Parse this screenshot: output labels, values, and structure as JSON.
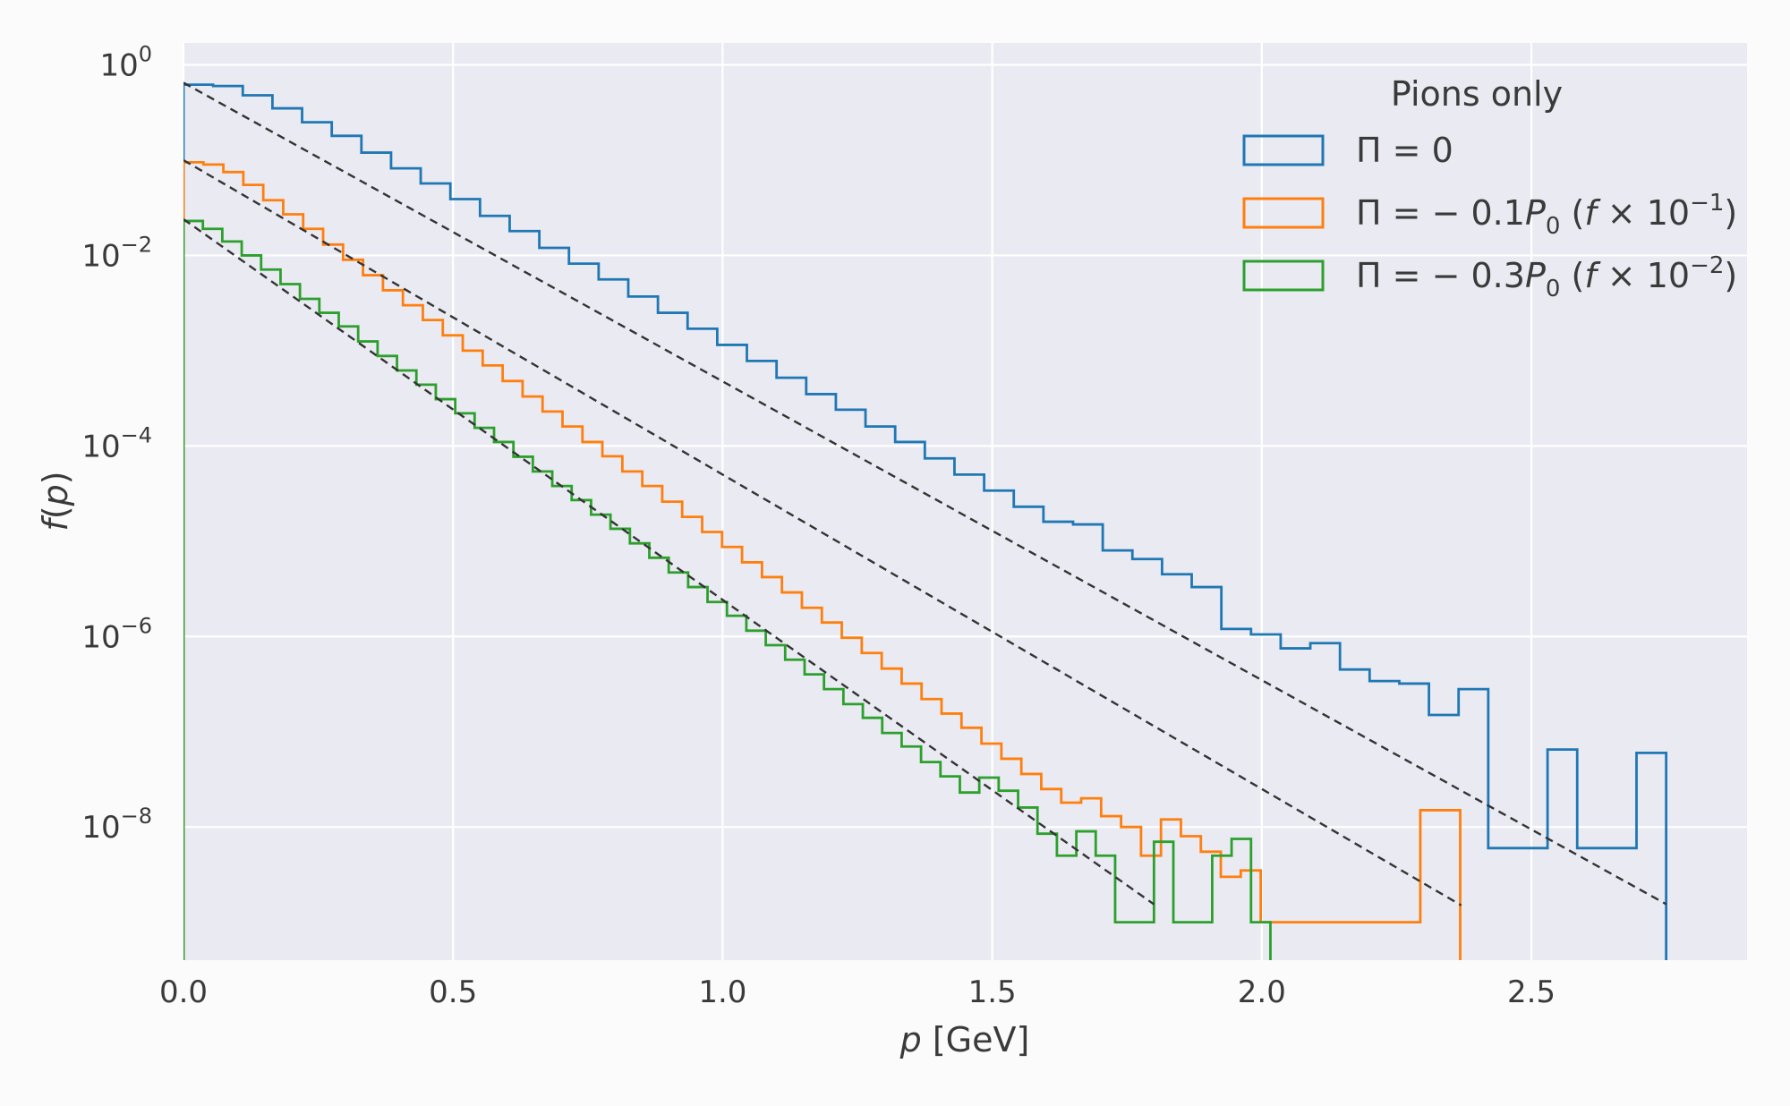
{
  "chart_data": {
    "type": "line",
    "plot_style": "step histogram with dashed fit lines",
    "y_scale": "log",
    "grid": true,
    "legend_placement": "top-right",
    "xlabel": {
      "italic": "p",
      "rest": " [GeV]"
    },
    "ylabel": {
      "italic": "f",
      "rest": "(",
      "italic2": "p",
      "close": ")"
    },
    "xlim": [
      0.0,
      2.9
    ],
    "ylim": [
      4e-10,
      1.7
    ],
    "x_ticks": [
      0.0,
      0.5,
      1.0,
      1.5,
      2.0,
      2.5
    ],
    "x_tick_labels": [
      "0.0",
      "0.5",
      "1.0",
      "1.5",
      "2.0",
      "2.5"
    ],
    "y_ticks": [
      1,
      0.01,
      0.0001,
      1e-06,
      1e-08
    ],
    "y_tick_labels": [
      {
        "base": "10",
        "exp": "0"
      },
      {
        "base": "10",
        "exp": "−2"
      },
      {
        "base": "10",
        "exp": "−4"
      },
      {
        "base": "10",
        "exp": "−6"
      },
      {
        "base": "10",
        "exp": "−8"
      }
    ],
    "legend_title": "Pions only",
    "series": [
      {
        "name": "Π = 0",
        "legend_parts": [
          {
            "t": "Π = 0"
          }
        ],
        "color": "#1f77b4",
        "bin_width": 0.055,
        "values": [
          0.62,
          0.6,
          0.48,
          0.35,
          0.25,
          0.18,
          0.12,
          0.082,
          0.057,
          0.039,
          0.026,
          0.018,
          0.012,
          0.0082,
          0.0056,
          0.0037,
          0.0025,
          0.0017,
          0.00115,
          0.00078,
          0.00052,
          0.00035,
          0.00024,
          0.00016,
          0.00011,
          7.4e-05,
          5e-05,
          3.4e-05,
          2.3e-05,
          1.6e-05,
          1.5e-05,
          8e-06,
          6.5e-06,
          4.5e-06,
          3.3e-06,
          1.2e-06,
          1.05e-06,
          7.5e-07,
          8.5e-07,
          4.5e-07,
          3.4e-07,
          3.2e-07,
          1.5e-07,
          2.8e-07,
          6e-09,
          6e-09,
          6.5e-08,
          6e-09,
          6e-09,
          6e-08
        ],
        "fit": {
          "a": 0.65,
          "b": 7.22,
          "x_end": 2.75
        }
      },
      {
        "name": "Π = − 0.1P0 (f × 10−1)",
        "legend_parts": [
          {
            "t": "Π = − 0.1"
          },
          {
            "t": "P",
            "it": true
          },
          {
            "t": "0",
            "sub": true
          },
          {
            "t": " ("
          },
          {
            "t": "f",
            "it": true
          },
          {
            "t": " × 10"
          },
          {
            "t": "−1",
            "sup": true
          },
          {
            "t": ")"
          }
        ],
        "color": "#ff7f0e",
        "bin_width": 0.037,
        "values": [
          0.095,
          0.09,
          0.075,
          0.055,
          0.038,
          0.027,
          0.019,
          0.013,
          0.009,
          0.0062,
          0.0043,
          0.003,
          0.0021,
          0.00145,
          0.001,
          0.0007,
          0.00048,
          0.00033,
          0.00023,
          0.00016,
          0.00011,
          7.8e-05,
          5.4e-05,
          3.8e-05,
          2.6e-05,
          1.8e-05,
          1.25e-05,
          8.7e-06,
          6e-06,
          4.2e-06,
          2.9e-06,
          2e-06,
          1.4e-06,
          9.7e-07,
          6.7e-07,
          4.6e-07,
          3.2e-07,
          2.2e-07,
          1.55e-07,
          1.1e-07,
          7.5e-08,
          5.2e-08,
          3.6e-08,
          2.5e-08,
          1.8e-08,
          2e-08,
          1.3e-08,
          1e-08,
          5e-09,
          1.2e-08,
          8e-09,
          5.5e-09,
          3e-09,
          3.5e-09,
          1e-09,
          1e-09,
          1e-09,
          1e-09,
          1e-09,
          1e-09,
          1e-09,
          1e-09,
          1.5e-08,
          1.5e-08
        ],
        "fit": {
          "a": 0.1,
          "b": 7.6,
          "x_end": 2.37
        }
      },
      {
        "name": "Π = − 0.3P0 (f × 10−2)",
        "legend_parts": [
          {
            "t": "Π = − 0.3"
          },
          {
            "t": "P",
            "it": true
          },
          {
            "t": "0",
            "sub": true
          },
          {
            "t": " ("
          },
          {
            "t": "f",
            "it": true
          },
          {
            "t": " × 10"
          },
          {
            "t": "−2",
            "sup": true
          },
          {
            "t": ")"
          }
        ],
        "color": "#2ca02c",
        "bin_width": 0.036,
        "values": [
          0.023,
          0.019,
          0.014,
          0.01,
          0.0071,
          0.005,
          0.0035,
          0.0025,
          0.0018,
          0.00125,
          0.00088,
          0.00062,
          0.00044,
          0.00031,
          0.00022,
          0.000155,
          0.00011,
          7.7e-05,
          5.4e-05,
          3.8e-05,
          2.7e-05,
          1.9e-05,
          1.35e-05,
          9.5e-06,
          6.7e-06,
          4.7e-06,
          3.3e-06,
          2.3e-06,
          1.65e-06,
          1.15e-06,
          8.1e-07,
          5.7e-07,
          4e-07,
          2.8e-07,
          1.95e-07,
          1.4e-07,
          9.7e-08,
          7e-08,
          4.8e-08,
          3.4e-08,
          2.3e-08,
          3.3e-08,
          2.4e-08,
          1.6e-08,
          8.5e-09,
          5e-09,
          9e-09,
          5e-09,
          1e-09,
          1e-09,
          7e-09,
          1e-09,
          1e-09,
          5e-09,
          7.5e-09,
          1e-09
        ],
        "fit": {
          "a": 0.024,
          "b": 9.2,
          "x_end": 1.8
        }
      }
    ]
  }
}
